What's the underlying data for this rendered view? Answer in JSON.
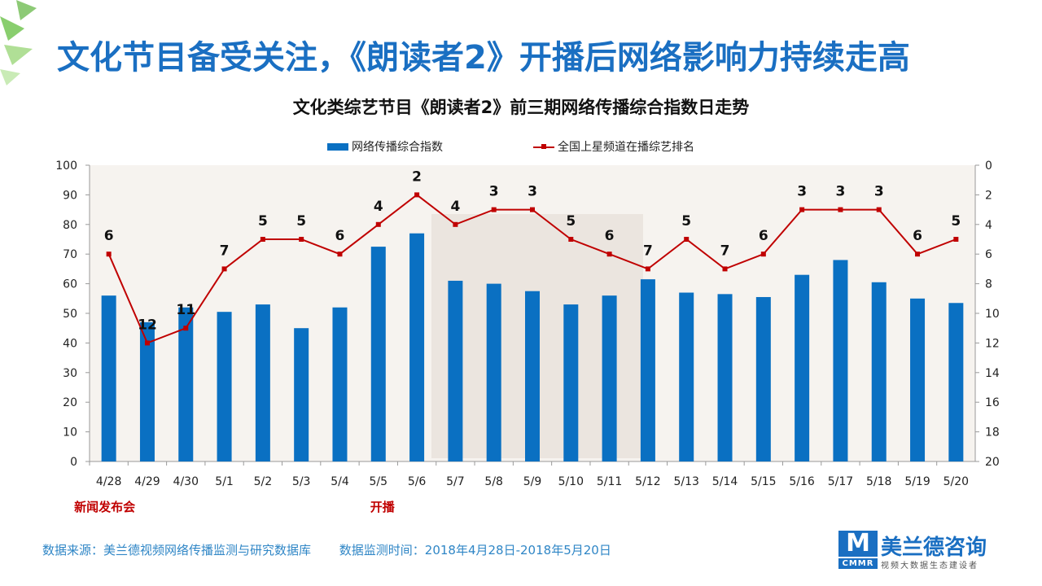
{
  "header": {
    "title": "文化节目备受关注，《朗读者2》开播后网络影响力持续走高"
  },
  "chart_data": {
    "type": "bar",
    "title": "文化类综艺节目《朗读者2》前三期网络传播综合指数日走势",
    "categories": [
      "4/28",
      "4/29",
      "4/30",
      "5/1",
      "5/2",
      "5/3",
      "5/4",
      "5/5",
      "5/6",
      "5/7",
      "5/8",
      "5/9",
      "5/10",
      "5/11",
      "5/12",
      "5/13",
      "5/14",
      "5/15",
      "5/16",
      "5/17",
      "5/18",
      "5/19",
      "5/20"
    ],
    "series": [
      {
        "name": "网络传播综合指数",
        "type": "bar",
        "axis": "left",
        "color": "#0a70c2",
        "values": [
          56,
          47,
          52,
          50.5,
          53,
          45,
          52,
          72.5,
          77,
          61,
          60,
          57.5,
          53,
          56,
          61.5,
          57,
          56.5,
          55.5,
          63,
          68,
          60.5,
          55,
          53.5
        ]
      },
      {
        "name": "全国上星频道在播综艺排名",
        "type": "line",
        "axis": "right",
        "color": "#c00000",
        "values": [
          6,
          12,
          11,
          7,
          5,
          5,
          6,
          4,
          2,
          4,
          3,
          3,
          5,
          6,
          7,
          5,
          7,
          6,
          3,
          3,
          3,
          6,
          5
        ]
      }
    ],
    "y_left": {
      "min": 0,
      "max": 100,
      "ticks": [
        "0",
        "10",
        "20",
        "30",
        "40",
        "50",
        "60",
        "70",
        "80",
        "90",
        "100"
      ]
    },
    "y_right": {
      "min": 0,
      "max": 20,
      "reversed": true,
      "ticks": [
        "0",
        "2",
        "4",
        "6",
        "8",
        "10",
        "12",
        "14",
        "16",
        "18",
        "20"
      ]
    },
    "legend_position": "top",
    "annotations": [
      {
        "category": "4/28",
        "text": "新闻发布会"
      },
      {
        "category": "5/5",
        "text": "开播"
      }
    ]
  },
  "footer": {
    "source": "数据来源：美兰德视频网络传播监测与研究数据库",
    "period": "数据监测时间：2018年4月28日-2018年5月20日"
  },
  "logo": {
    "mark": "M",
    "abbr": "CMMR",
    "name": "美兰德咨询",
    "tagline": "视频大数据生态建设者"
  }
}
